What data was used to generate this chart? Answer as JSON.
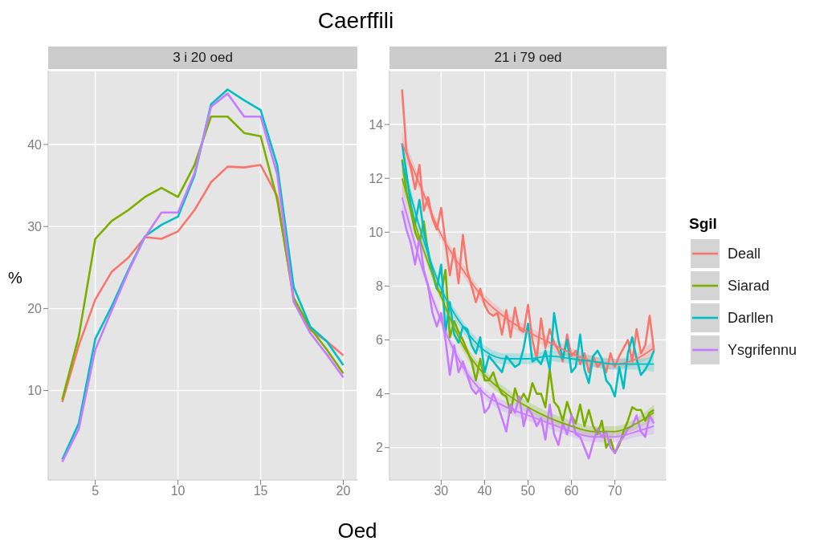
{
  "chart_data": [
    {
      "type": "line",
      "title": "Caerffili",
      "subtitle": "3 i 20 oed",
      "xlabel": "Oed",
      "ylabel": "%",
      "x": [
        3,
        4,
        5,
        6,
        7,
        8,
        9,
        10,
        11,
        12,
        13,
        14,
        15,
        16,
        17,
        18,
        19,
        20
      ],
      "xlim": [
        2.15,
        20.85
      ],
      "xticks": [
        5,
        10,
        15,
        20
      ],
      "ylim": [
        -0.9,
        49
      ],
      "yticks": [
        10,
        20,
        30,
        40
      ],
      "grid": true,
      "legend": false,
      "marker": "none",
      "line_style": "solid",
      "series": [
        {
          "color": "#f8766d",
          "values": [
            8.6,
            15.5,
            21.1,
            24.5,
            26.2,
            28.7,
            28.5,
            29.4,
            32,
            35.4,
            37.3,
            37.2,
            37.5,
            33.7,
            21,
            17.4,
            16,
            14.3
          ]
        },
        {
          "color": "#7cae00",
          "values": [
            8.9,
            16.6,
            28.5,
            30.7,
            32,
            33.6,
            34.7,
            33.6,
            37.5,
            43.4,
            43.4,
            41.4,
            41,
            33.3,
            21.3,
            17.6,
            15,
            12.1
          ]
        },
        {
          "color": "#00bfc4",
          "values": [
            1.6,
            6,
            16.3,
            20.3,
            24.7,
            28.8,
            30.2,
            31.2,
            36.2,
            44.9,
            46.7,
            45.4,
            44.2,
            37.5,
            22.6,
            17.8,
            16,
            13.1
          ]
        },
        {
          "color": "#c77cff",
          "values": [
            1.3,
            5.3,
            15,
            19.8,
            24.5,
            28.7,
            31.7,
            31.7,
            36.5,
            44.6,
            46.2,
            43.4,
            43.4,
            36.4,
            20.8,
            17,
            14.4,
            11.6
          ]
        }
      ]
    },
    {
      "type": "line",
      "subtitle": "21 i 79 oed",
      "x": [
        21,
        22,
        23,
        24,
        25,
        26,
        27,
        28,
        29,
        30,
        31,
        32,
        33,
        34,
        35,
        36,
        37,
        38,
        39,
        40,
        41,
        42,
        43,
        44,
        45,
        46,
        47,
        48,
        49,
        50,
        51,
        52,
        53,
        54,
        55,
        56,
        57,
        58,
        59,
        60,
        61,
        62,
        63,
        64,
        65,
        66,
        67,
        68,
        69,
        70,
        71,
        72,
        73,
        74,
        75,
        76,
        77,
        78,
        79
      ],
      "xlim": [
        18.1,
        81.9
      ],
      "xticks": [
        30,
        40,
        50,
        60,
        70
      ],
      "ylim": [
        0.8,
        16
      ],
      "yticks": [
        2,
        4,
        6,
        8,
        10,
        12,
        14
      ],
      "grid": true,
      "legend": "right",
      "legend_title": "Sgil",
      "marker": "none",
      "line_style": "solid",
      "series": [
        {
          "name": "Deall",
          "color": "#f8766d",
          "values": [
            15.3,
            13.0,
            12.4,
            11.6,
            12.5,
            10.8,
            11.3,
            10.5,
            10.1,
            10.9,
            9.6,
            8.4,
            9.4,
            8.1,
            9.9,
            8.6,
            8.0,
            7.4,
            7.9,
            7.3,
            7.0,
            6.9,
            7.0,
            6.2,
            7.1,
            6.1,
            7.2,
            6.4,
            6.3,
            7.3,
            6.0,
            5.3,
            6.8,
            5.7,
            6.4,
            5.9,
            5.6,
            5.2,
            6.2,
            5.4,
            5.6,
            5.1,
            5.5,
            4.8,
            5.4,
            5.0,
            5.2,
            4.8,
            5.5,
            5.0,
            5.4,
            5.7,
            6.0,
            5.2,
            6.4,
            5.5,
            5.8,
            6.9,
            5.6
          ]
        },
        {
          "name": "Siarad",
          "color": "#7cae00",
          "values": [
            12.7,
            11.5,
            10.8,
            10.0,
            9.6,
            10.4,
            9.2,
            8.5,
            7.9,
            7.7,
            8.6,
            6.1,
            6.7,
            6.3,
            6.0,
            5.6,
            5.2,
            4.5,
            5.3,
            4.5,
            4.5,
            4.8,
            4.3,
            4.0,
            3.9,
            3.3,
            4.2,
            3.7,
            4.0,
            3.7,
            4.4,
            4.0,
            4.0,
            3.5,
            4.9,
            3.7,
            3.5,
            3.0,
            3.7,
            3.2,
            2.9,
            3.6,
            2.8,
            3.4,
            2.8,
            2.5,
            3.0,
            2.0,
            2.3,
            1.8,
            2.1,
            2.6,
            3.0,
            3.5,
            3.4,
            3.4,
            3.0,
            3.3,
            3.4
          ]
        },
        {
          "name": "Darllen",
          "color": "#00bfc4",
          "values": [
            13.3,
            12.2,
            11.0,
            10.3,
            11.2,
            10.0,
            9.3,
            8.5,
            7.9,
            8.8,
            6.3,
            7.4,
            6.2,
            5.9,
            6.5,
            6.4,
            5.8,
            5.5,
            6.1,
            4.8,
            5.4,
            5.2,
            5.0,
            4.8,
            5.4,
            5.2,
            5.0,
            5.1,
            5.7,
            6.6,
            5.2,
            5.3,
            5.1,
            5.6,
            4.9,
            7.0,
            6.0,
            5.3,
            6.0,
            4.8,
            5.0,
            6.2,
            4.9,
            4.4,
            5.4,
            5.6,
            5.3,
            4.5,
            4.3,
            3.9,
            5.0,
            4.2,
            5.5,
            6.1,
            5.3,
            4.7,
            4.9,
            5.2,
            5.6
          ]
        },
        {
          "name": "Ysgrifennu",
          "color": "#c77cff",
          "values": [
            10.8,
            10.1,
            9.6,
            8.8,
            9.8,
            8.6,
            8.0,
            7.0,
            6.5,
            7.0,
            6.0,
            4.7,
            5.8,
            4.8,
            5.2,
            4.7,
            4.2,
            4.0,
            4.2,
            3.3,
            3.5,
            4.0,
            3.6,
            3.1,
            2.6,
            3.6,
            3.3,
            3.9,
            2.8,
            3.5,
            3.2,
            2.8,
            3.1,
            2.3,
            3.6,
            2.5,
            2.1,
            2.9,
            2.5,
            3.2,
            2.5,
            2.4,
            2.0,
            1.6,
            2.2,
            2.7,
            2.4,
            2.6,
            2.0,
            1.8,
            2.2,
            2.4,
            2.7,
            2.8,
            3.2,
            2.6,
            2.4,
            3.2,
            2.9
          ]
        },
        {
          "type": "line",
          "color": "#f8766d",
          "x": [
            21,
            25,
            30,
            35,
            40,
            45,
            50,
            55,
            60,
            65,
            70,
            75,
            79
          ],
          "values": [
            13.3,
            11.8,
            9.9,
            8.6,
            7.5,
            6.8,
            6.3,
            5.9,
            5.5,
            5.2,
            5.1,
            5.3,
            5.7
          ],
          "lower": [
            12.9,
            11.6,
            9.7,
            8.4,
            7.3,
            6.6,
            6.1,
            5.7,
            5.3,
            5.0,
            4.9,
            5.1,
            5.4
          ],
          "upper": [
            13.7,
            12.0,
            10.1,
            8.8,
            7.7,
            7.0,
            6.5,
            6.1,
            5.7,
            5.4,
            5.3,
            5.5,
            6.0
          ]
        },
        {
          "type": "line",
          "color": "#7cae00",
          "x": [
            21,
            25,
            30,
            35,
            40,
            45,
            50,
            55,
            60,
            65,
            70,
            75,
            79
          ],
          "values": [
            12.0,
            9.8,
            7.6,
            5.8,
            4.7,
            4.0,
            3.5,
            3.1,
            2.8,
            2.6,
            2.6,
            2.9,
            3.3
          ],
          "lower": [
            11.6,
            9.6,
            7.4,
            5.6,
            4.5,
            3.8,
            3.3,
            2.9,
            2.6,
            2.4,
            2.4,
            2.7,
            3.0
          ],
          "upper": [
            12.4,
            10.0,
            7.8,
            6.0,
            4.9,
            4.2,
            3.7,
            3.3,
            3.0,
            2.8,
            2.8,
            3.1,
            3.6
          ]
        },
        {
          "type": "line",
          "color": "#00bfc4",
          "x": [
            21,
            25,
            30,
            35,
            40,
            45,
            50,
            55,
            60,
            65,
            70,
            75,
            79
          ],
          "values": [
            12.6,
            10.2,
            7.9,
            6.5,
            5.6,
            5.3,
            5.3,
            5.4,
            5.3,
            5.2,
            5.1,
            5.1,
            5.1
          ],
          "lower": [
            12.2,
            10.0,
            7.7,
            6.3,
            5.4,
            5.1,
            5.1,
            5.2,
            5.1,
            5.0,
            4.9,
            4.9,
            4.8
          ],
          "upper": [
            13.0,
            10.4,
            8.1,
            6.7,
            5.8,
            5.5,
            5.5,
            5.6,
            5.5,
            5.4,
            5.3,
            5.3,
            5.4
          ]
        },
        {
          "type": "line",
          "color": "#c77cff",
          "x": [
            21,
            25,
            30,
            35,
            40,
            45,
            50,
            55,
            60,
            65,
            70,
            75,
            79
          ],
          "values": [
            11.3,
            9.0,
            6.7,
            5.0,
            4.0,
            3.5,
            3.2,
            2.9,
            2.6,
            2.4,
            2.4,
            2.6,
            2.8
          ],
          "lower": [
            10.9,
            8.8,
            6.5,
            4.8,
            3.8,
            3.3,
            3.0,
            2.7,
            2.4,
            2.2,
            2.2,
            2.4,
            2.5
          ],
          "upper": [
            11.7,
            9.2,
            6.9,
            5.2,
            4.2,
            3.7,
            3.4,
            3.1,
            2.8,
            2.6,
            2.6,
            2.8,
            3.1
          ]
        }
      ]
    }
  ]
}
